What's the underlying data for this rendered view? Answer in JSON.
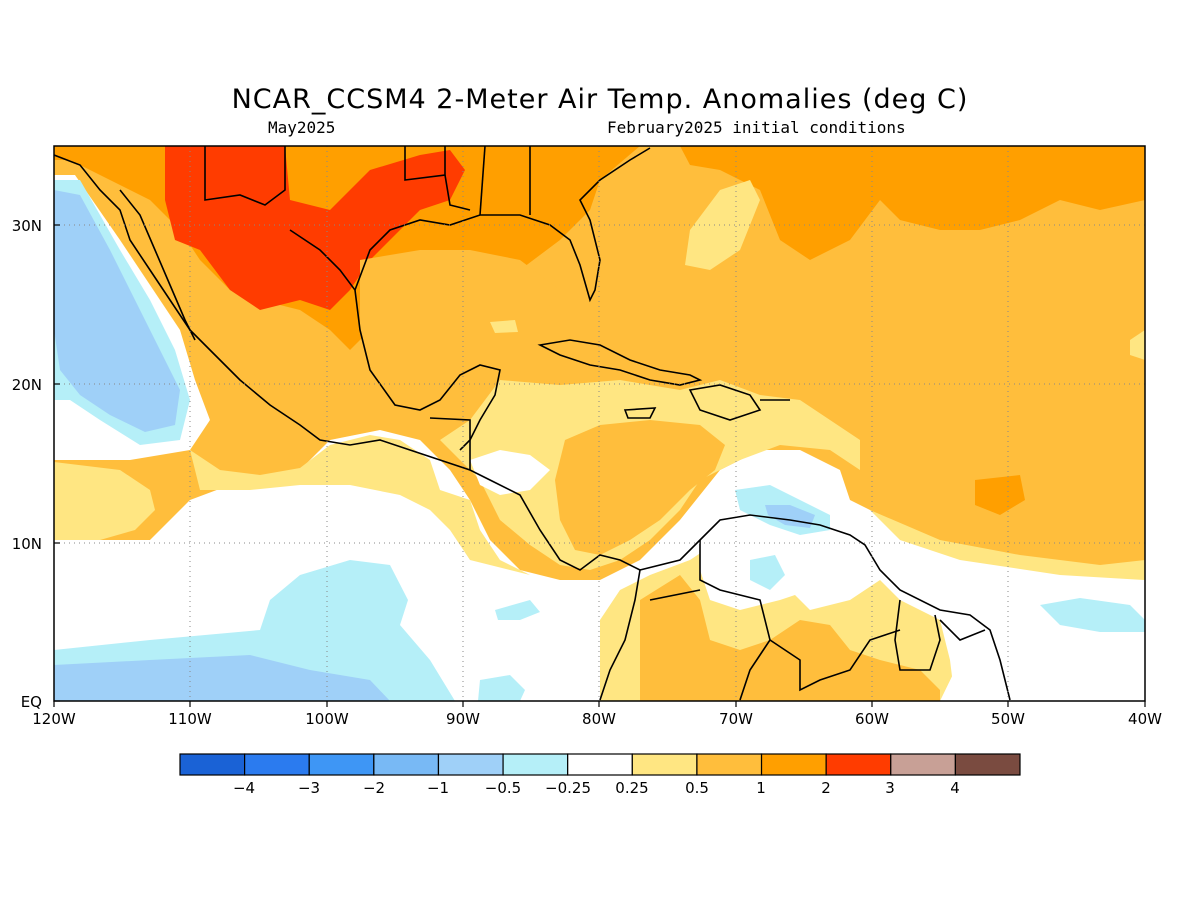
{
  "title": "NCAR_CCSM4 2-Meter Air Temp. Anomalies (deg C)",
  "subtitle_left": "May2025",
  "subtitle_right": "February2025 initial conditions",
  "map": {
    "lon_range": [
      -120,
      -40
    ],
    "lat_range": [
      0,
      35
    ],
    "grid": "dotted",
    "lat_ticks": [
      {
        "value": 30,
        "label": "30N"
      },
      {
        "value": 20,
        "label": "20N"
      },
      {
        "value": 10,
        "label": "10N"
      },
      {
        "value": 0,
        "label": "EQ"
      }
    ],
    "lon_ticks": [
      {
        "value": -120,
        "label": "120W"
      },
      {
        "value": -110,
        "label": "110W"
      },
      {
        "value": -100,
        "label": "100W"
      },
      {
        "value": -90,
        "label": "90W"
      },
      {
        "value": -80,
        "label": "80W"
      },
      {
        "value": -70,
        "label": "70W"
      },
      {
        "value": -60,
        "label": "60W"
      },
      {
        "value": -50,
        "label": "50W"
      },
      {
        "value": -40,
        "label": "40W"
      }
    ]
  },
  "colorbar": {
    "colors": [
      "#1a62d6",
      "#2b7bef",
      "#3e96f5",
      "#78b9f5",
      "#9fd0f8",
      "#b5eff8",
      "#ffffff",
      "#ffe682",
      "#ffbe3c",
      "#ff9f00",
      "#ff3c00",
      "#c8a096",
      "#7a4b40"
    ],
    "labels": [
      "−4",
      "−3",
      "−2",
      "−1",
      "−0.5",
      "−0.25",
      "0.25",
      "0.5",
      "1",
      "2",
      "3",
      "4"
    ]
  }
}
